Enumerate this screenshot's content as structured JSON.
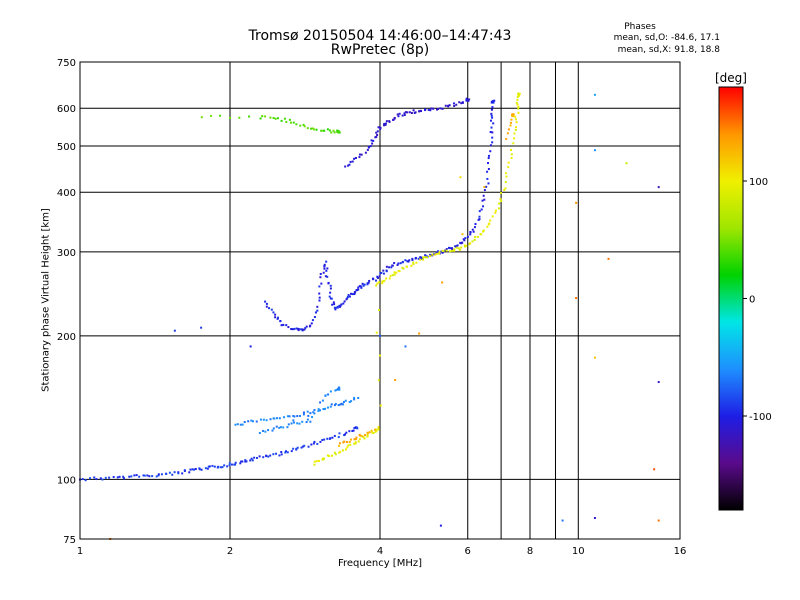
{
  "title_line1": "Tromsø 20150504 14:46:00–14:47:43",
  "title_line2": "RwPretec (8p)",
  "phases": {
    "label": "Phases",
    "line_o": "mean, sd,O: -84.6, 17.1",
    "line_x": "mean, sd,X: 91.8, 18.8"
  },
  "chart_data": {
    "type": "scatter",
    "title": "Tromsø 20150504 14:46:00–14:47:43",
    "subtitle": "RwPretec (8p)",
    "xlabel": "Frequency [MHz]",
    "ylabel": "Stationary phase Virtual Height [km]",
    "x_scale": "log",
    "y_scale": "log",
    "xlim": [
      1,
      16
    ],
    "ylim": [
      75,
      750
    ],
    "x_ticks": [
      1,
      2,
      4,
      6,
      8,
      10,
      16
    ],
    "x_tick_labels": [
      "1",
      "2",
      "4",
      "6",
      "8",
      "10",
      "16"
    ],
    "y_ticks": [
      75,
      100,
      200,
      300,
      400,
      500,
      600,
      750
    ],
    "y_tick_labels": [
      "75",
      "100",
      "200",
      "300",
      "400",
      "500",
      "600",
      "750"
    ],
    "grid": true,
    "colorbar": {
      "label": "[deg]",
      "range": [
        -180,
        180
      ],
      "ticks": [
        100,
        0,
        -100
      ],
      "tick_labels": [
        "100",
        "0",
        "-100"
      ],
      "colors": [
        "#000000",
        "#5a0a8c",
        "#1e1ee6",
        "#1e90ff",
        "#00e6e6",
        "#00d200",
        "#a0e600",
        "#f0f000",
        "#ff9600",
        "#ff0000"
      ]
    },
    "series": [
      {
        "phase_deg": -90,
        "points": [
          [
            1.0,
            100
          ],
          [
            1.1,
            100.5
          ],
          [
            1.2,
            101
          ],
          [
            1.3,
            101.5
          ],
          [
            1.4,
            102
          ],
          [
            1.5,
            102.5
          ],
          [
            1.6,
            103.5
          ],
          [
            1.7,
            104.5
          ],
          [
            1.8,
            105.5
          ],
          [
            1.9,
            106.5
          ],
          [
            2.0,
            107.5
          ],
          [
            2.1,
            108.5
          ],
          [
            2.2,
            110
          ],
          [
            2.35,
            111.5
          ],
          [
            2.5,
            113
          ],
          [
            2.65,
            115
          ],
          [
            2.8,
            117
          ],
          [
            3.0,
            119.5
          ],
          [
            3.2,
            122
          ],
          [
            3.4,
            125
          ],
          [
            3.6,
            128
          ]
        ]
      },
      {
        "phase_deg": -65,
        "points": [
          [
            2.05,
            130
          ],
          [
            2.2,
            132
          ],
          [
            2.4,
            134
          ],
          [
            2.6,
            135
          ],
          [
            2.8,
            137
          ],
          [
            3.0,
            140
          ],
          [
            3.2,
            143
          ],
          [
            3.4,
            145
          ],
          [
            3.6,
            148
          ],
          [
            2.3,
            125
          ],
          [
            2.5,
            128
          ],
          [
            2.7,
            131
          ],
          [
            2.9,
            133
          ],
          [
            3.1,
            150
          ],
          [
            3.3,
            155
          ]
        ]
      },
      {
        "phase_deg": -100,
        "points": [
          [
            2.35,
            235
          ],
          [
            2.45,
            222
          ],
          [
            2.55,
            212
          ],
          [
            2.7,
            206
          ],
          [
            2.8,
            205
          ],
          [
            2.9,
            210
          ],
          [
            3.0,
            230
          ],
          [
            3.05,
            265
          ],
          [
            3.1,
            285
          ],
          [
            3.15,
            260
          ],
          [
            3.2,
            240
          ],
          [
            3.25,
            228
          ],
          [
            3.35,
            232
          ],
          [
            3.45,
            240
          ],
          [
            3.55,
            247
          ],
          [
            3.65,
            253
          ],
          [
            3.75,
            258
          ],
          [
            3.9,
            263
          ],
          [
            4.05,
            272
          ],
          [
            4.2,
            280
          ],
          [
            4.4,
            285
          ],
          [
            4.6,
            288
          ],
          [
            4.8,
            291
          ],
          [
            5.0,
            294
          ],
          [
            5.2,
            298
          ],
          [
            5.4,
            302
          ],
          [
            5.6,
            306
          ],
          [
            5.8,
            312
          ],
          [
            6.0,
            322
          ],
          [
            6.2,
            338
          ],
          [
            6.4,
            368
          ],
          [
            6.55,
            410
          ],
          [
            6.65,
            470
          ],
          [
            6.7,
            530
          ],
          [
            6.72,
            580
          ],
          [
            6.75,
            620
          ]
        ]
      },
      {
        "phase_deg": -110,
        "points": [
          [
            3.4,
            450
          ],
          [
            3.6,
            470
          ],
          [
            3.8,
            495
          ],
          [
            3.9,
            520
          ],
          [
            4.0,
            545
          ],
          [
            4.15,
            560
          ],
          [
            4.3,
            575
          ],
          [
            4.5,
            585
          ],
          [
            4.7,
            590
          ],
          [
            4.9,
            595
          ],
          [
            5.2,
            600
          ],
          [
            5.5,
            605
          ],
          [
            5.8,
            615
          ],
          [
            6.0,
            625
          ]
        ]
      },
      {
        "phase_deg": 95,
        "points": [
          [
            2.95,
            108
          ],
          [
            3.1,
            111
          ],
          [
            3.3,
            114
          ],
          [
            3.5,
            118
          ],
          [
            3.7,
            122
          ],
          [
            3.9,
            126
          ],
          [
            4.0,
            128
          ],
          [
            3.95,
            255
          ],
          [
            4.1,
            262
          ],
          [
            4.3,
            270
          ],
          [
            4.5,
            278
          ],
          [
            4.8,
            288
          ],
          [
            5.1,
            295
          ],
          [
            5.4,
            300
          ],
          [
            5.7,
            304
          ],
          [
            6.0,
            310
          ],
          [
            6.3,
            322
          ],
          [
            6.6,
            340
          ],
          [
            6.9,
            370
          ],
          [
            7.1,
            410
          ],
          [
            7.3,
            470
          ],
          [
            7.45,
            540
          ],
          [
            7.55,
            600
          ],
          [
            7.6,
            640
          ]
        ]
      },
      {
        "phase_deg": 130,
        "points": [
          [
            3.3,
            118
          ],
          [
            3.5,
            121
          ],
          [
            3.7,
            124
          ],
          [
            3.9,
            127
          ],
          [
            7.2,
            520
          ],
          [
            7.4,
            580
          ]
        ]
      },
      {
        "phase_deg": 40,
        "points": [
          [
            1.75,
            575
          ],
          [
            2.3,
            575
          ],
          [
            2.5,
            570
          ],
          [
            2.7,
            560
          ],
          [
            2.9,
            545
          ],
          [
            3.1,
            540
          ],
          [
            3.3,
            535
          ]
        ]
      }
    ],
    "scattered_points": [
      {
        "x": 1.55,
        "y": 205,
        "phase_deg": -90
      },
      {
        "x": 1.75,
        "y": 208,
        "phase_deg": -90
      },
      {
        "x": 2.2,
        "y": 190,
        "phase_deg": -100
      },
      {
        "x": 4.0,
        "y": 200,
        "phase_deg": -80
      },
      {
        "x": 4.5,
        "y": 190,
        "phase_deg": -70
      },
      {
        "x": 5.3,
        "y": 80,
        "phase_deg": -100
      },
      {
        "x": 9.3,
        "y": 82,
        "phase_deg": -70
      },
      {
        "x": 10.8,
        "y": 83,
        "phase_deg": -110
      },
      {
        "x": 14.5,
        "y": 82,
        "phase_deg": 150
      },
      {
        "x": 14.2,
        "y": 105,
        "phase_deg": 160
      },
      {
        "x": 14.5,
        "y": 160,
        "phase_deg": -110
      },
      {
        "x": 14.5,
        "y": 410,
        "phase_deg": -120
      },
      {
        "x": 10.8,
        "y": 640,
        "phase_deg": -50
      },
      {
        "x": 10.8,
        "y": 490,
        "phase_deg": -60
      },
      {
        "x": 12.5,
        "y": 460,
        "phase_deg": 80
      },
      {
        "x": 9.9,
        "y": 380,
        "phase_deg": 140
      },
      {
        "x": 11.5,
        "y": 290,
        "phase_deg": 150
      },
      {
        "x": 9.9,
        "y": 240,
        "phase_deg": 150
      },
      {
        "x": 10.8,
        "y": 180,
        "phase_deg": 120
      },
      {
        "x": 1.15,
        "y": 75,
        "phase_deg": 150
      },
      {
        "x": 5.8,
        "y": 430,
        "phase_deg": 110
      }
    ]
  }
}
